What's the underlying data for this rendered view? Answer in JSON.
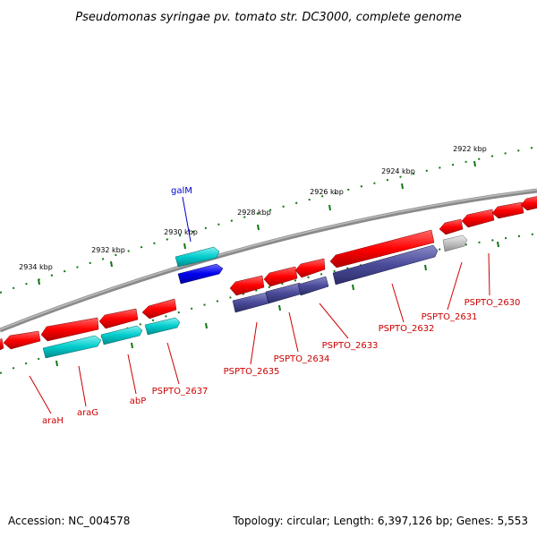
{
  "title": "Pseudomonas syringae pv. tomato str. DC3000, complete genome",
  "accession": "Accession: NC_004578",
  "summary": "Topology: circular; Length: 6,397,126 bp; Genes: 5,553",
  "kbp_labels": [
    "2934 kbp",
    "2932 kbp",
    "2930 kbp",
    "2928 kbp",
    "2926 kbp",
    "2924 kbp",
    "2922 kbp"
  ],
  "gene_labels": [
    "araH",
    "araG",
    "abP",
    "PSPTO_2637",
    "galM",
    "PSPTO_2635",
    "PSPTO_2634",
    "PSPTO_2633",
    "PSPTO_2632",
    "PSPTO_2631",
    "PSPTO_2630"
  ],
  "colors": {
    "gene_red": "#ff0000",
    "gene_cyan": "#00cccc",
    "gene_purple": "#4a4a9a",
    "gene_blue": "#0000ee",
    "gene_grey": "#c0c0c0",
    "backbone": "#808080",
    "tick_green": "#117711",
    "label_red": "#cc0000",
    "label_blue": "#0000cc"
  }
}
